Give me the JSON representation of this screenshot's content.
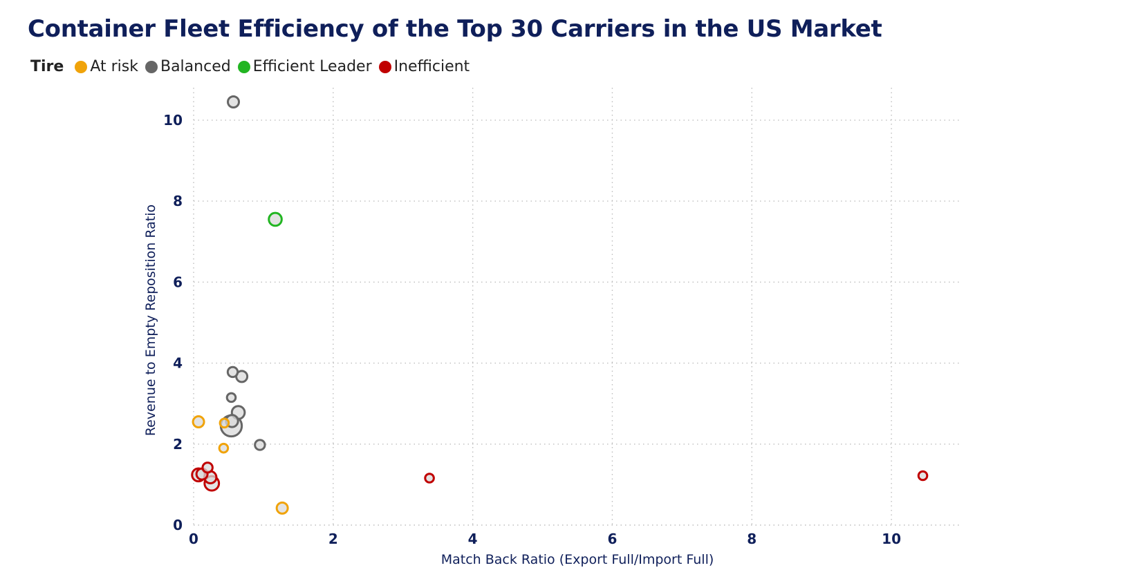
{
  "chart_data": {
    "type": "scatter",
    "title": "Container Fleet Efficiency of the Top 30 Carriers in the US Market",
    "xlabel": "Match Back Ratio (Export Full/Import Full)",
    "ylabel": "Revenue to Empty Reposition Ratio",
    "xlim": [
      0,
      11
    ],
    "ylim": [
      0,
      10.8
    ],
    "xticks": [
      0,
      2,
      4,
      6,
      8,
      10
    ],
    "yticks": [
      0,
      2,
      4,
      6,
      8,
      10
    ],
    "grid": true,
    "legend": {
      "title": "Tire",
      "position": "top-left",
      "entries": [
        {
          "name": "At risk",
          "color": "#f0a30a"
        },
        {
          "name": "Balanced",
          "color": "#666666"
        },
        {
          "name": "Efficient Leader",
          "color": "#22b522"
        },
        {
          "name": "Inefficient",
          "color": "#c00000"
        }
      ]
    },
    "series": [
      {
        "name": "At risk",
        "color": "#f0a30a",
        "points": [
          {
            "x": 0.07,
            "y": 2.55,
            "size": 2
          },
          {
            "x": 0.44,
            "y": 2.52,
            "size": 1
          },
          {
            "x": 0.43,
            "y": 1.9,
            "size": 1
          },
          {
            "x": 1.27,
            "y": 0.42,
            "size": 2
          }
        ]
      },
      {
        "name": "Balanced",
        "color": "#666666",
        "points": [
          {
            "x": 0.57,
            "y": 10.45,
            "size": 2
          },
          {
            "x": 0.56,
            "y": 3.78,
            "size": 1.5
          },
          {
            "x": 0.69,
            "y": 3.67,
            "size": 2
          },
          {
            "x": 0.54,
            "y": 3.15,
            "size": 1
          },
          {
            "x": 0.64,
            "y": 2.78,
            "size": 3
          },
          {
            "x": 0.55,
            "y": 2.57,
            "size": 2.5
          },
          {
            "x": 0.54,
            "y": 2.45,
            "size": 10
          },
          {
            "x": 0.95,
            "y": 1.98,
            "size": 1.5
          }
        ]
      },
      {
        "name": "Efficient Leader",
        "color": "#22b522",
        "points": [
          {
            "x": 1.17,
            "y": 7.55,
            "size": 3
          }
        ]
      },
      {
        "name": "Inefficient",
        "color": "#c00000",
        "points": [
          {
            "x": 0.07,
            "y": 1.24,
            "size": 3
          },
          {
            "x": 0.12,
            "y": 1.26,
            "size": 2
          },
          {
            "x": 0.2,
            "y": 1.42,
            "size": 1.5
          },
          {
            "x": 0.24,
            "y": 1.18,
            "size": 2.5
          },
          {
            "x": 0.26,
            "y": 1.03,
            "size": 4
          },
          {
            "x": 3.38,
            "y": 1.16,
            "size": 1
          },
          {
            "x": 10.45,
            "y": 1.22,
            "size": 1
          }
        ]
      }
    ]
  }
}
